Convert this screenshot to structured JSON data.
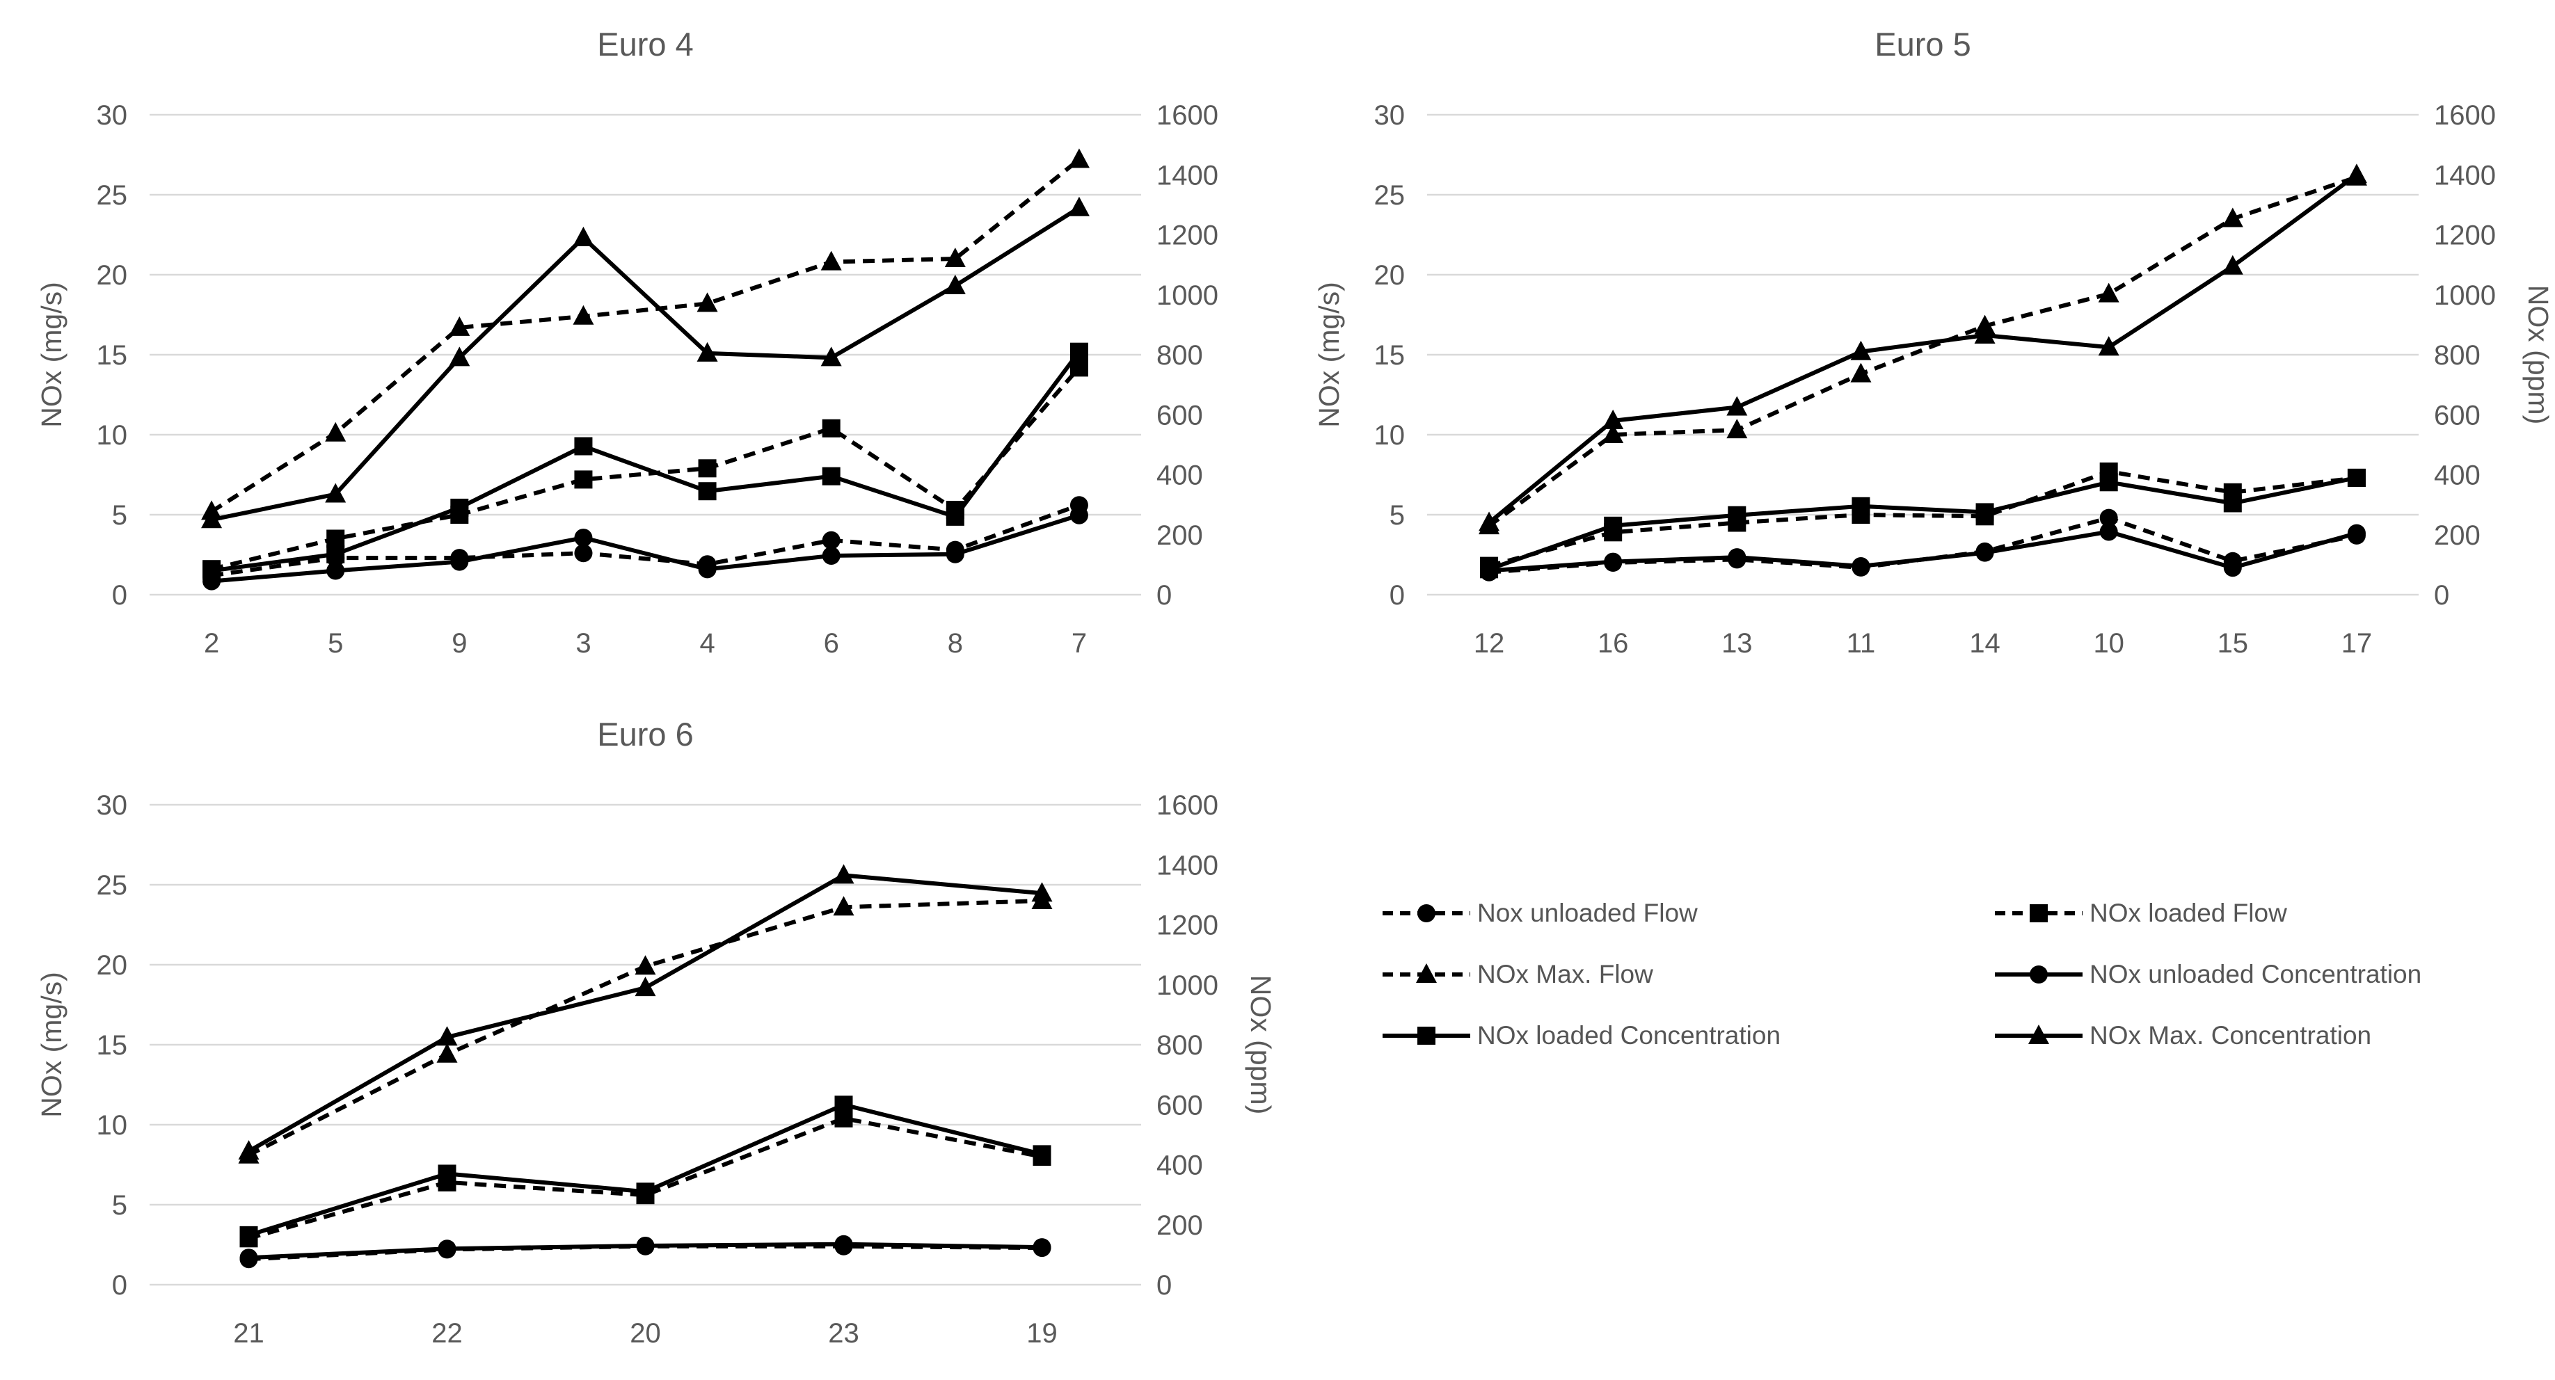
{
  "colors": {
    "series": "#000000",
    "axis_text": "#595959",
    "title_text": "#595959",
    "legend_text": "#555555",
    "gridline": "#d9d9d9",
    "background": "#ffffff"
  },
  "legend": {
    "items": [
      {
        "label": "Nox unloaded Flow",
        "line": "dashed",
        "marker": "circle"
      },
      {
        "label": "NOx loaded Flow",
        "line": "dashed",
        "marker": "square"
      },
      {
        "label": "NOx Max. Flow",
        "line": "dashed",
        "marker": "triangle"
      },
      {
        "label": "NOx unloaded Concentration",
        "line": "solid",
        "marker": "circle"
      },
      {
        "label": "NOx loaded Concentration",
        "line": "solid",
        "marker": "square"
      },
      {
        "label": "NOx Max. Concentration",
        "line": "solid",
        "marker": "triangle"
      }
    ]
  },
  "chart_data": [
    {
      "type": "line",
      "title": "Euro 4",
      "categories": [
        "2",
        "5",
        "9",
        "3",
        "4",
        "6",
        "8",
        "7"
      ],
      "left_axis": {
        "title": "NOx (mg/s)",
        "min": 0,
        "max": 30,
        "step": 5
      },
      "right_axis": {
        "title": "",
        "min": 0,
        "max": 1600,
        "step": 200
      },
      "grid": true,
      "series": [
        {
          "name": "Nox unloaded Flow",
          "axis": "left",
          "line": "dashed",
          "marker": "circle",
          "values": [
            1.2,
            2.3,
            2.3,
            2.6,
            1.9,
            3.4,
            2.8,
            5.6
          ]
        },
        {
          "name": "NOx loaded Flow",
          "axis": "left",
          "line": "dashed",
          "marker": "square",
          "values": [
            1.6,
            3.5,
            5.0,
            7.2,
            7.9,
            10.4,
            5.3,
            14.2
          ]
        },
        {
          "name": "NOx Max. Flow",
          "axis": "left",
          "line": "dashed",
          "marker": "triangle",
          "values": [
            5.2,
            10.1,
            16.7,
            17.4,
            18.2,
            20.8,
            21.0,
            27.2
          ]
        },
        {
          "name": "NOx unloaded Concentration",
          "axis": "right",
          "line": "solid",
          "marker": "circle",
          "values": [
            45,
            80,
            110,
            190,
            85,
            130,
            135,
            265
          ]
        },
        {
          "name": "NOx loaded Concentration",
          "axis": "right",
          "line": "solid",
          "marker": "square",
          "values": [
            80,
            135,
            290,
            495,
            345,
            395,
            260,
            810
          ]
        },
        {
          "name": "NOx Max. Concentration",
          "axis": "right",
          "line": "solid",
          "marker": "triangle",
          "values": [
            250,
            335,
            790,
            1190,
            805,
            790,
            1030,
            1290
          ]
        }
      ]
    },
    {
      "type": "line",
      "title": "Euro 5",
      "categories": [
        "12",
        "16",
        "13",
        "11",
        "14",
        "10",
        "15",
        "17"
      ],
      "left_axis": {
        "title": "NOx (mg/s)",
        "min": 0,
        "max": 30,
        "step": 5
      },
      "right_axis": {
        "title": "NOx (ppm)",
        "min": 0,
        "max": 1600,
        "step": 200
      },
      "grid": true,
      "series": [
        {
          "name": "Nox unloaded Flow",
          "axis": "left",
          "line": "dashed",
          "marker": "circle",
          "values": [
            1.4,
            2.0,
            2.2,
            1.7,
            2.7,
            4.8,
            2.1,
            3.7
          ]
        },
        {
          "name": "NOx loaded Flow",
          "axis": "left",
          "line": "dashed",
          "marker": "square",
          "values": [
            1.8,
            3.9,
            4.5,
            5.0,
            4.9,
            7.7,
            6.4,
            7.3
          ]
        },
        {
          "name": "NOx Max. Flow",
          "axis": "left",
          "line": "dashed",
          "marker": "triangle",
          "values": [
            4.3,
            10.0,
            10.3,
            13.8,
            16.8,
            18.8,
            23.5,
            26.1
          ]
        },
        {
          "name": "NOx unloaded Concentration",
          "axis": "right",
          "line": "solid",
          "marker": "circle",
          "values": [
            80,
            110,
            125,
            95,
            140,
            210,
            90,
            205
          ]
        },
        {
          "name": "NOx loaded Concentration",
          "axis": "right",
          "line": "solid",
          "marker": "square",
          "values": [
            85,
            230,
            265,
            295,
            275,
            375,
            305,
            390
          ]
        },
        {
          "name": "NOx Max. Concentration",
          "axis": "right",
          "line": "solid",
          "marker": "triangle",
          "values": [
            240,
            580,
            625,
            810,
            865,
            825,
            1095,
            1400
          ]
        }
      ]
    },
    {
      "type": "line",
      "title": "Euro 6",
      "categories": [
        "21",
        "22",
        "20",
        "23",
        "19"
      ],
      "left_axis": {
        "title": "NOx (mg/s)",
        "min": 0,
        "max": 30,
        "step": 5
      },
      "right_axis": {
        "title": "NOx (ppm)",
        "min": 0,
        "max": 1600,
        "step": 200
      },
      "grid": true,
      "series": [
        {
          "name": "Nox unloaded Flow",
          "axis": "left",
          "line": "dashed",
          "marker": "circle",
          "values": [
            1.6,
            2.2,
            2.4,
            2.4,
            2.3
          ]
        },
        {
          "name": "NOx loaded Flow",
          "axis": "left",
          "line": "dashed",
          "marker": "square",
          "values": [
            2.9,
            6.4,
            5.6,
            10.4,
            8.0
          ]
        },
        {
          "name": "NOx Max. Flow",
          "axis": "left",
          "line": "dashed",
          "marker": "triangle",
          "values": [
            8.1,
            14.4,
            19.9,
            23.6,
            24.0
          ]
        },
        {
          "name": "NOx unloaded Concentration",
          "axis": "right",
          "line": "solid",
          "marker": "circle",
          "values": [
            90,
            120,
            130,
            135,
            125
          ]
        },
        {
          "name": "NOx loaded Concentration",
          "axis": "right",
          "line": "solid",
          "marker": "square",
          "values": [
            165,
            370,
            310,
            600,
            435
          ]
        },
        {
          "name": "NOx Max. Concentration",
          "axis": "right",
          "line": "solid",
          "marker": "triangle",
          "values": [
            445,
            825,
            990,
            1365,
            1305
          ]
        }
      ]
    }
  ]
}
